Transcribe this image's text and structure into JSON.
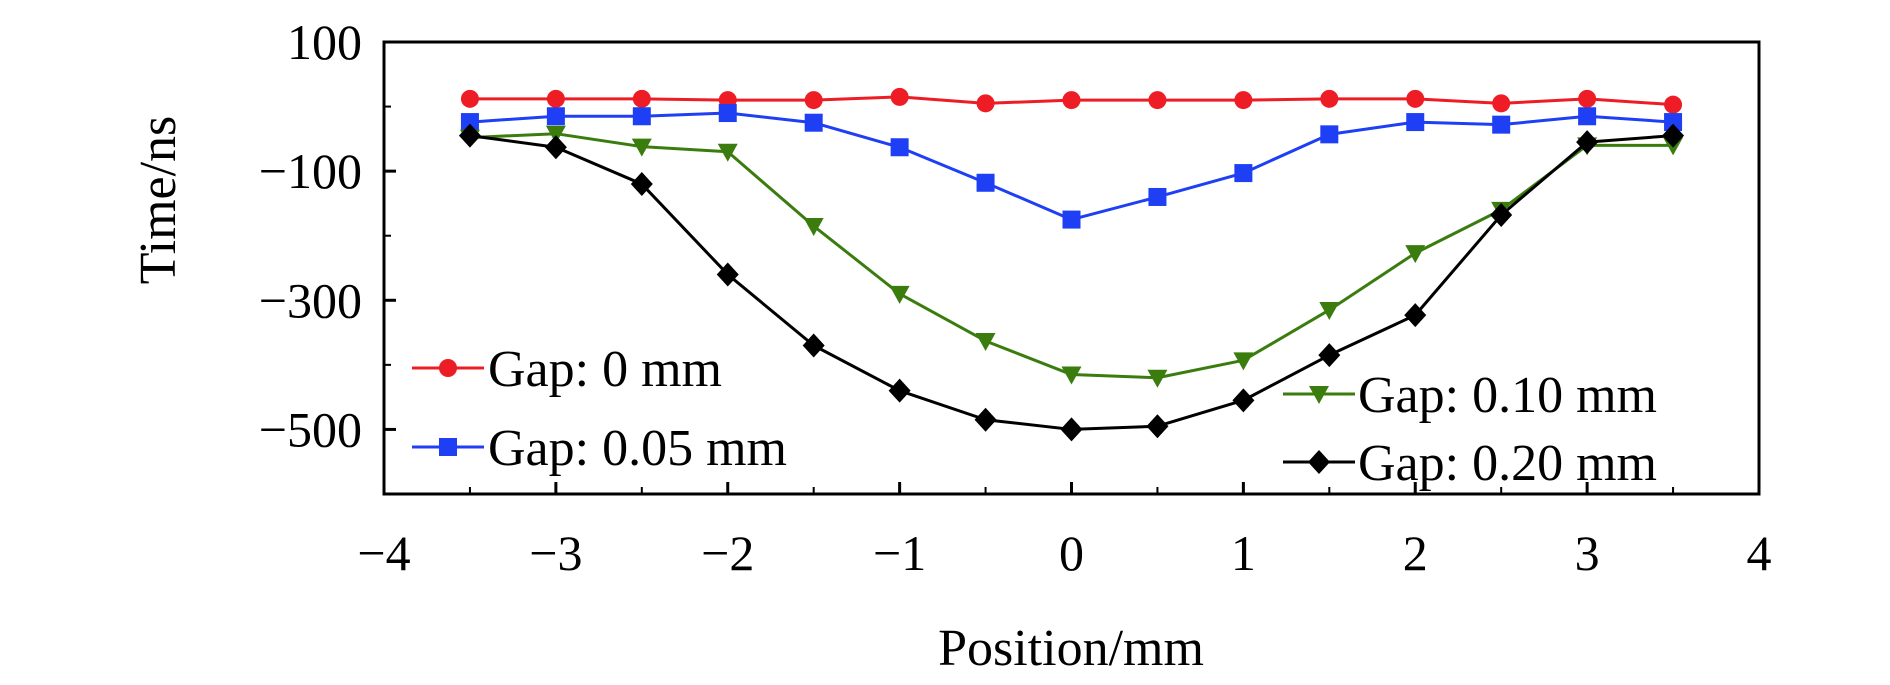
{
  "chart_data": {
    "type": "line",
    "xlabel": "Position/mm",
    "ylabel": "Time/ns",
    "xlim": [
      -4,
      4
    ],
    "ylim": [
      -600,
      100
    ],
    "xticks": [
      -4,
      -3,
      -2,
      -1,
      0,
      1,
      2,
      3,
      4
    ],
    "xtick_labels": [
      "−4",
      "−3",
      "−2",
      "−1",
      "0",
      "1",
      "2",
      "3",
      "4"
    ],
    "yticks": [
      100,
      -100,
      -300,
      -500
    ],
    "ytick_labels": [
      "100",
      "−100",
      "−300",
      "−500"
    ],
    "grid": false,
    "x": [
      -3.5,
      -3.0,
      -2.5,
      -2.0,
      -1.5,
      -1.0,
      -0.5,
      0.0,
      0.5,
      1.0,
      1.5,
      2.0,
      2.5,
      3.0,
      3.5
    ],
    "series": [
      {
        "name": "Gap: 0 mm",
        "color": "#ee1c24",
        "marker": "circle",
        "values": [
          12,
          12,
          12,
          10,
          10,
          15,
          5,
          10,
          10,
          10,
          12,
          12,
          5,
          12,
          3
        ]
      },
      {
        "name": "Gap: 0.05 mm",
        "color": "#1f3ff5",
        "marker": "square",
        "values": [
          -24,
          -15,
          -15,
          -10,
          -25,
          -63,
          -118,
          -175,
          -140,
          -103,
          -43,
          -24,
          -28,
          -15,
          -24
        ]
      },
      {
        "name": "Gap: 0.10 mm",
        "color": "#3a7d0e",
        "marker": "triangle-down",
        "values": [
          -48,
          -42,
          -62,
          -70,
          -185,
          -290,
          -363,
          -415,
          -420,
          -393,
          -315,
          -227,
          -160,
          -60,
          -60
        ]
      },
      {
        "name": "Gap: 0.20 mm",
        "color": "#000000",
        "marker": "diamond",
        "values": [
          -45,
          -63,
          -120,
          -260,
          -370,
          -440,
          -485,
          -500,
          -495,
          -455,
          -385,
          -323,
          -168,
          -55,
          -45
        ]
      }
    ]
  }
}
